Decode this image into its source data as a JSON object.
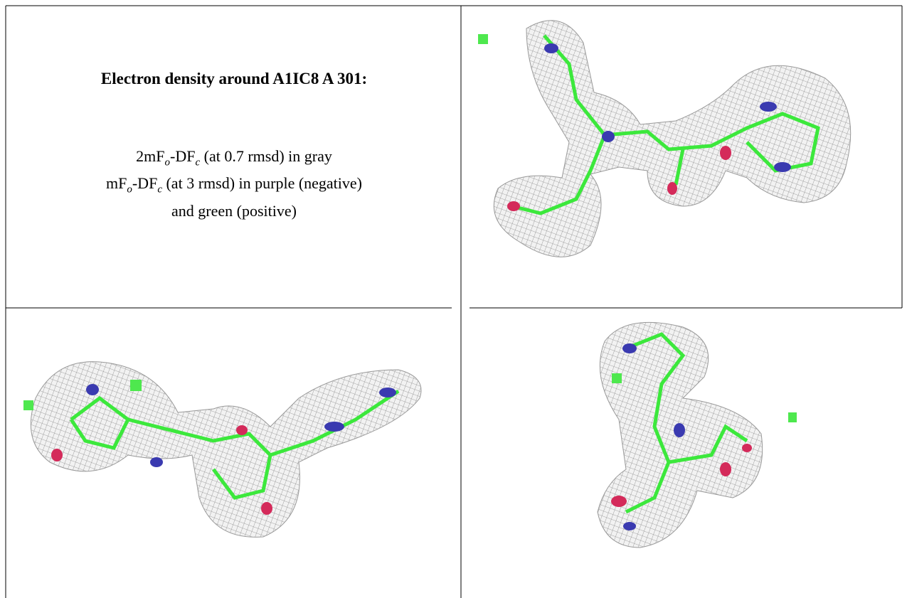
{
  "header": {
    "title": "Electron density around A1IC8 A 301:"
  },
  "legend": {
    "lines": [
      [
        {
          "text": "2mF"
        },
        {
          "text": "o",
          "sub": true
        },
        {
          "text": "-DF"
        },
        {
          "text": "c",
          "sub": true
        },
        {
          "text": " (at 0.7 rmsd) in gray"
        }
      ],
      [
        {
          "text": "mF"
        },
        {
          "text": "o",
          "sub": true
        },
        {
          "text": "-DF"
        },
        {
          "text": "c",
          "sub": true
        },
        {
          "text": " (at 3 rmsd) in purple (negative)"
        }
      ],
      [
        {
          "text": "and green (positive)"
        }
      ]
    ]
  }
}
